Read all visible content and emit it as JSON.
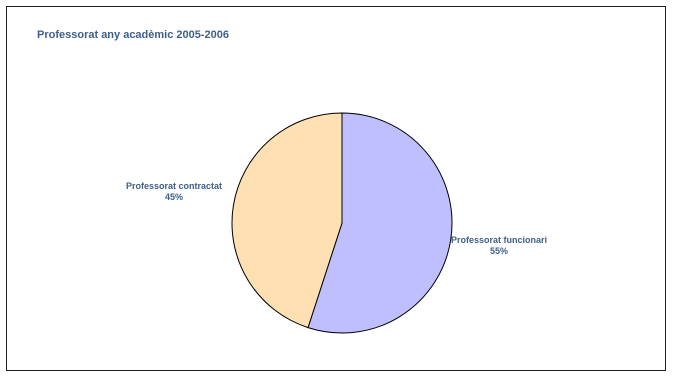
{
  "chart_data": {
    "type": "pie",
    "title": "Professorat any acadèmic 2005-2006",
    "slices": [
      {
        "name": "Professorat funcionari",
        "value": 55,
        "label": "55%",
        "color": "#bfbfff"
      },
      {
        "name": "Professorat contractat",
        "value": 45,
        "label": "45%",
        "color": "#ffe0b3"
      }
    ],
    "label_color": "#3f5f8a",
    "legend": "none"
  }
}
